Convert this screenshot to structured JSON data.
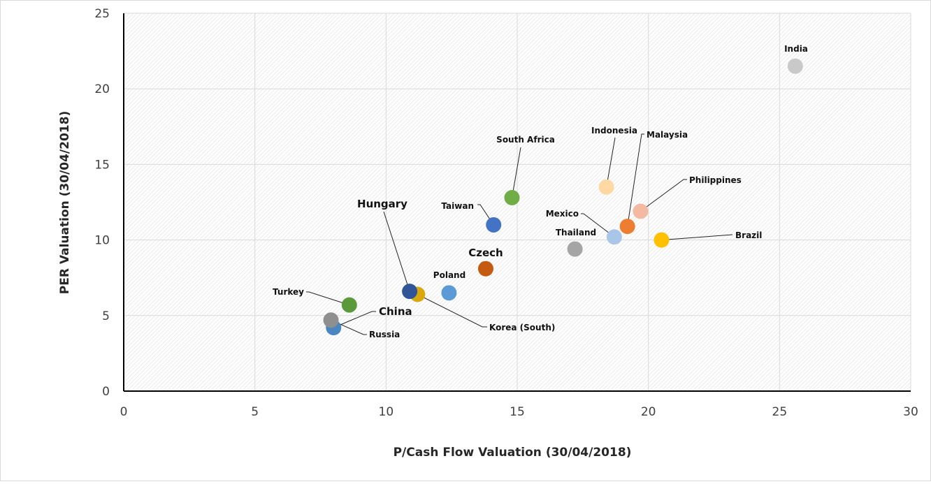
{
  "chart_data": {
    "type": "scatter",
    "title": "",
    "xlabel": "P/Cash Flow Valuation (30/04/2018)",
    "ylabel": "PER Valuation (30/04/2018)",
    "xlim": [
      0,
      30
    ],
    "ylim": [
      0,
      25
    ],
    "xticks": [
      "0",
      "5",
      "10",
      "15",
      "20",
      "25",
      "30"
    ],
    "yticks": [
      "0",
      "5",
      "10",
      "15",
      "20",
      "25"
    ],
    "grid": true,
    "legend": "none",
    "points": [
      {
        "label": "India",
        "x": 25.6,
        "y": 21.5,
        "color": "#c9c9c9"
      },
      {
        "label": "Indonesia",
        "x": 18.4,
        "y": 13.5,
        "color": "#ffd8a3"
      },
      {
        "label": "Malaysia",
        "x": 19.2,
        "y": 10.9,
        "color": "#ed7d31"
      },
      {
        "label": "Philippines",
        "x": 19.7,
        "y": 11.9,
        "color": "#f4b9a2"
      },
      {
        "label": "Brazil",
        "x": 20.5,
        "y": 10.0,
        "color": "#ffc000"
      },
      {
        "label": "Mexico",
        "x": 18.7,
        "y": 10.2,
        "color": "#a9c5e8"
      },
      {
        "label": "Thailand",
        "x": 17.2,
        "y": 9.4,
        "color": "#a5a5a5"
      },
      {
        "label": "South Africa",
        "x": 14.8,
        "y": 12.8,
        "color": "#70ad47"
      },
      {
        "label": "Taiwan",
        "x": 14.1,
        "y": 11.0,
        "color": "#4472c4"
      },
      {
        "label": "Czech",
        "x": 13.8,
        "y": 8.1,
        "color": "#c55a11"
      },
      {
        "label": "Poland",
        "x": 12.4,
        "y": 6.5,
        "color": "#5b9bd5"
      },
      {
        "label": "Korea (South)",
        "x": 11.2,
        "y": 6.4,
        "color": "#d9a70e"
      },
      {
        "label": "Hungary",
        "x": 10.9,
        "y": 6.6,
        "color": "#2f5597"
      },
      {
        "label": "Turkey",
        "x": 8.6,
        "y": 5.7,
        "color": "#5a9a3a"
      },
      {
        "label": "China",
        "x": 8.0,
        "y": 4.2,
        "color": "#4a86c0"
      },
      {
        "label": "Russia",
        "x": 7.9,
        "y": 4.7,
        "color": "#8f8f8f"
      }
    ]
  }
}
